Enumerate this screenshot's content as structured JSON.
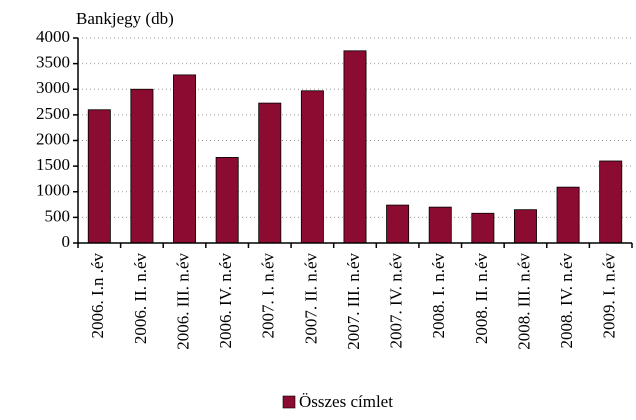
{
  "chart_data": {
    "type": "bar",
    "y_axis_label": "Bankjegy (db)",
    "categories": [
      "2006. I.n .év",
      "2006. II. n.év",
      "2006. III. n.év",
      "2006. IV. n.év",
      "2007. I. n.év",
      "2007. II. n.év",
      "2007. III. n.év",
      "2007. IV. n.év",
      "2008. I. n.év",
      "2008. II. n.év",
      "2008. III. n.év",
      "2008. IV. n.év",
      "2009. I. n.év"
    ],
    "series": [
      {
        "name": "Összes címlet",
        "color": "#8c0b30",
        "values": [
          2600,
          3000,
          3280,
          1670,
          2730,
          2970,
          3750,
          740,
          700,
          580,
          650,
          1090,
          1600
        ]
      }
    ],
    "ylim": [
      0,
      4000
    ],
    "yticks": [
      0,
      500,
      1000,
      1500,
      2000,
      2500,
      3000,
      3500,
      4000
    ],
    "grid": true,
    "legend": "bottom"
  }
}
